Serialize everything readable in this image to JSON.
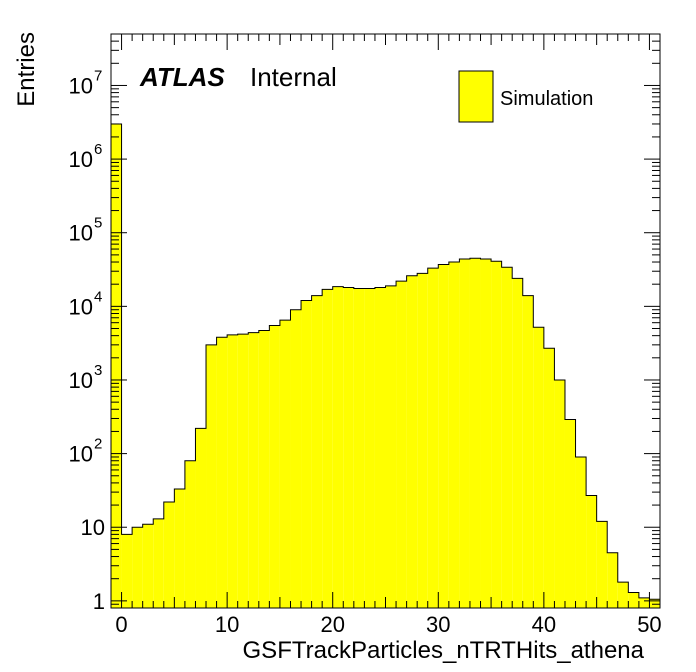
{
  "chart_data": {
    "type": "bar",
    "style": "histogram",
    "fill_color": "#ffff00",
    "line_color": "#000000",
    "xlabel": "GSFTrackParticles_nTRTHits_athena",
    "ylabel": "Entries",
    "x_range": [
      -1,
      51
    ],
    "y_range": [
      0.8,
      50000000
    ],
    "y_scale": "log",
    "bin_width": 1,
    "x_ticks": [
      0,
      10,
      20,
      30,
      40,
      50
    ],
    "y_ticks": [
      {
        "value": 1,
        "base": "1",
        "exp": ""
      },
      {
        "value": 10,
        "base": "10",
        "exp": ""
      },
      {
        "value": 100,
        "base": "10",
        "exp": "2"
      },
      {
        "value": 1000,
        "base": "10",
        "exp": "3"
      },
      {
        "value": 10000,
        "base": "10",
        "exp": "4"
      },
      {
        "value": 100000,
        "base": "10",
        "exp": "5"
      },
      {
        "value": 1000000,
        "base": "10",
        "exp": "6"
      },
      {
        "value": 10000000,
        "base": "10",
        "exp": "7"
      }
    ],
    "bins_low_edge": [
      -1,
      0,
      1,
      2,
      3,
      4,
      5,
      6,
      7,
      8,
      9,
      10,
      11,
      12,
      13,
      14,
      15,
      16,
      17,
      18,
      19,
      20,
      21,
      22,
      23,
      24,
      25,
      26,
      27,
      28,
      29,
      30,
      31,
      32,
      33,
      34,
      35,
      36,
      37,
      38,
      39,
      40,
      41,
      42,
      43,
      44,
      45,
      46,
      47,
      48,
      49,
      50
    ],
    "values": [
      3000000,
      8,
      10,
      11,
      13,
      22,
      33,
      80,
      220,
      3000,
      3800,
      4100,
      4200,
      4400,
      4700,
      5500,
      6500,
      9000,
      12000,
      14000,
      17000,
      18500,
      18000,
      17500,
      17500,
      18000,
      19000,
      22000,
      26000,
      28000,
      33000,
      37000,
      40000,
      44000,
      45000,
      44000,
      41000,
      34000,
      24000,
      14000,
      5200,
      2700,
      1000,
      290,
      90,
      27,
      12,
      4.5,
      1.8,
      1.3,
      1.1,
      1.05
    ],
    "legend": {
      "entries": [
        "Simulation"
      ],
      "position": "top-right"
    },
    "annotations": {
      "experiment": "ATLAS",
      "status": "Internal"
    },
    "grid": false
  }
}
